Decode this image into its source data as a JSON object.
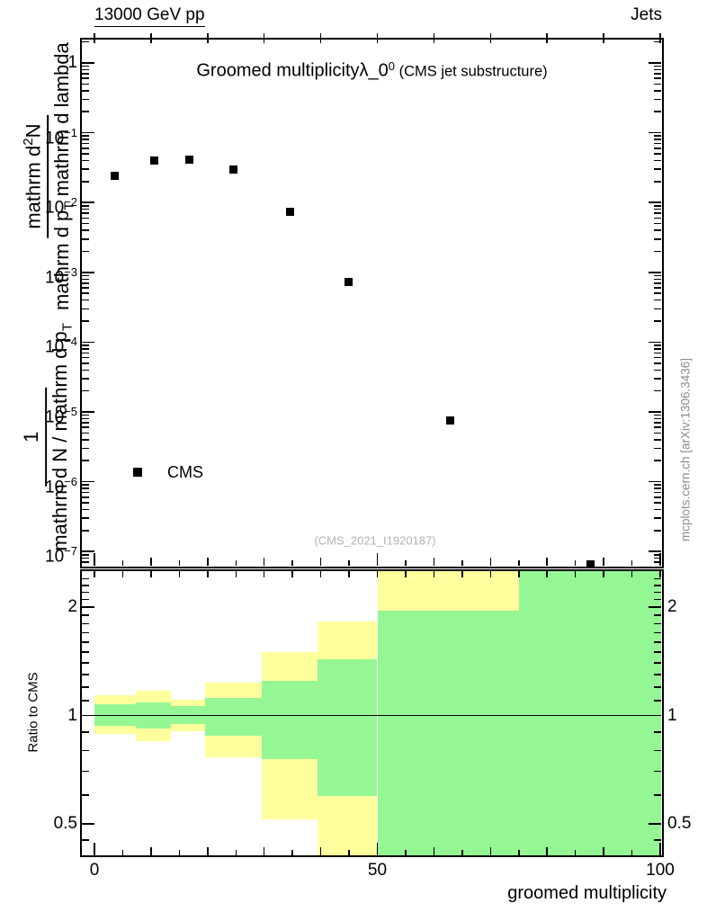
{
  "header": {
    "left": "13000 GeV pp",
    "right": "Jets"
  },
  "title": {
    "main": "Groomed multiplicity",
    "symbol": "λ_0",
    "symbol_sup": "0",
    "paren": " (CMS jet substructure)"
  },
  "legend": {
    "label": "CMS",
    "marker": "filled-square-icon",
    "marker_color": "#000000"
  },
  "watermark": "(CMS_2021_I1920187)",
  "side_note": "mcplots.cern.ch [arXiv:1306.3436]",
  "ratio_ylabel": "Ratio to CMS",
  "xaxis_title": "groomed multiplicity",
  "ylabel_fraction": {
    "num1": "1",
    "den1_a": "mathrm d N / mathrm d p",
    "den1_sub": "T",
    "num2_a": "mathrm d",
    "num2_sup": "2",
    "num2_b": "N",
    "den2_a": "mathrm d p",
    "den2_sub": "T",
    "den2_b": " mathrm d lambda"
  },
  "colors": {
    "outer_band": "#ffff9d",
    "inner_band": "#94f794",
    "marker": "#000000",
    "frame": "#000000"
  },
  "chart_data": [
    {
      "type": "scatter",
      "panel": "main",
      "title": "Groomed multiplicity λ_0^0 (CMS jet substructure)",
      "yscale": "log",
      "ylim": [
        6e-08,
        2.2
      ],
      "xlim": [
        -2.4,
        100.3
      ],
      "yticks": [
        "1",
        "10^−1",
        "10^−2",
        "10^−3",
        "10^−4",
        "10^−5",
        "10^−6",
        "10^−7"
      ],
      "ytick_values": [
        1,
        0.1,
        0.01,
        0.001,
        0.0001,
        1e-05,
        1e-06,
        1e-07
      ],
      "legend_position": "lower-left",
      "series": [
        {
          "name": "CMS",
          "marker": "filled-square",
          "color": "#000000",
          "x": [
            3.5,
            10.6,
            16.7,
            24.6,
            34.6,
            44.9,
            62.8,
            87.7
          ],
          "y": [
            0.024,
            0.0405,
            0.041,
            0.0293,
            0.0073,
            0.00073,
            7.5e-06,
            6.5e-08
          ]
        }
      ]
    },
    {
      "type": "band-ratio",
      "panel": "ratio",
      "ylabel": "Ratio to CMS",
      "yscale": "log",
      "ylim": [
        0.406,
        2.53
      ],
      "yticks": [
        "2",
        "1",
        "0.5"
      ],
      "ytick_values": [
        2,
        1,
        0.5
      ],
      "xticks": [
        "0",
        "50",
        "100"
      ],
      "xtick_values": [
        0,
        50,
        100
      ],
      "unity_line": 1,
      "outer_band_color": "#ffff9d",
      "inner_band_color": "#94f794",
      "bins": [
        {
          "x0": 0,
          "x1": 7.3,
          "outer": [
            0.89,
            1.14
          ],
          "inner": [
            0.935,
            1.075
          ]
        },
        {
          "x0": 7.3,
          "x1": 13.5,
          "outer": [
            0.85,
            1.17
          ],
          "inner": [
            0.92,
            1.09
          ]
        },
        {
          "x0": 13.5,
          "x1": 19.5,
          "outer": [
            0.905,
            1.105
          ],
          "inner": [
            0.945,
            1.06
          ]
        },
        {
          "x0": 19.5,
          "x1": 29.5,
          "outer": [
            0.765,
            1.235
          ],
          "inner": [
            0.88,
            1.12
          ]
        },
        {
          "x0": 29.5,
          "x1": 39.5,
          "outer": [
            0.515,
            1.5
          ],
          "inner": [
            0.755,
            1.25
          ]
        },
        {
          "x0": 39.5,
          "x1": 50,
          "outer": [
            0.38,
            1.82
          ],
          "inner": [
            0.596,
            1.43
          ]
        },
        {
          "x0": 50,
          "x1": 75,
          "outer": [
            0.38,
            2.6
          ],
          "inner": [
            0.38,
            1.96
          ]
        },
        {
          "x0": 75,
          "x1": 100,
          "outer": [
            0.38,
            2.6
          ],
          "inner": [
            0.38,
            2.6
          ]
        }
      ]
    }
  ]
}
